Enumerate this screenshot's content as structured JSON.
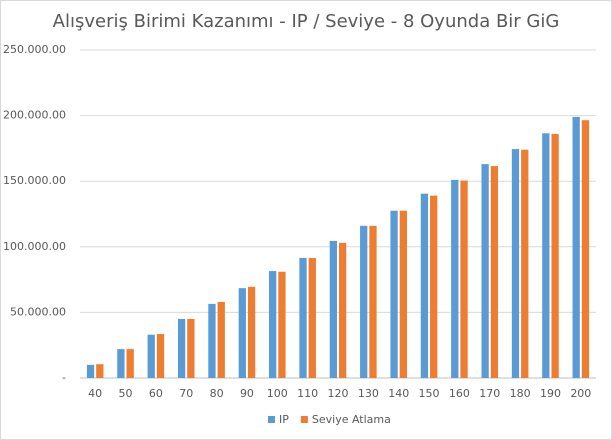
{
  "chart_data": {
    "type": "bar",
    "title": "Alışveriş Birimi Kazanımı - IP / Seviye - 8 Oyunda Bir GiG",
    "categories": [
      "40",
      "50",
      "60",
      "70",
      "80",
      "90",
      "100",
      "110",
      "120",
      "130",
      "140",
      "150",
      "160",
      "170",
      "180",
      "190",
      "200"
    ],
    "series": [
      {
        "name": "IP",
        "color": "#5b9bd5",
        "values": [
          10000,
          22000,
          33000,
          45000,
          56500,
          68500,
          81500,
          91500,
          104500,
          116000,
          127500,
          140500,
          151000,
          163000,
          174500,
          186500,
          199000
        ]
      },
      {
        "name": "Seviye Atlama",
        "color": "#ed7d31",
        "values": [
          10500,
          22000,
          33500,
          45000,
          58000,
          69500,
          81000,
          91500,
          103000,
          116000,
          127500,
          139000,
          150500,
          161500,
          174000,
          186000,
          196500
        ]
      }
    ],
    "ylim": [
      0,
      250000
    ],
    "yticks": [
      {
        "value": 0,
        "label": "-"
      },
      {
        "value": 50000,
        "label": "50.000.00"
      },
      {
        "value": 100000,
        "label": "100.000.00"
      },
      {
        "value": 150000,
        "label": "150.000.00"
      },
      {
        "value": 200000,
        "label": "200.000.00"
      },
      {
        "value": 250000,
        "label": "250.000.00"
      }
    ],
    "grid": true,
    "legend": "bottom"
  }
}
